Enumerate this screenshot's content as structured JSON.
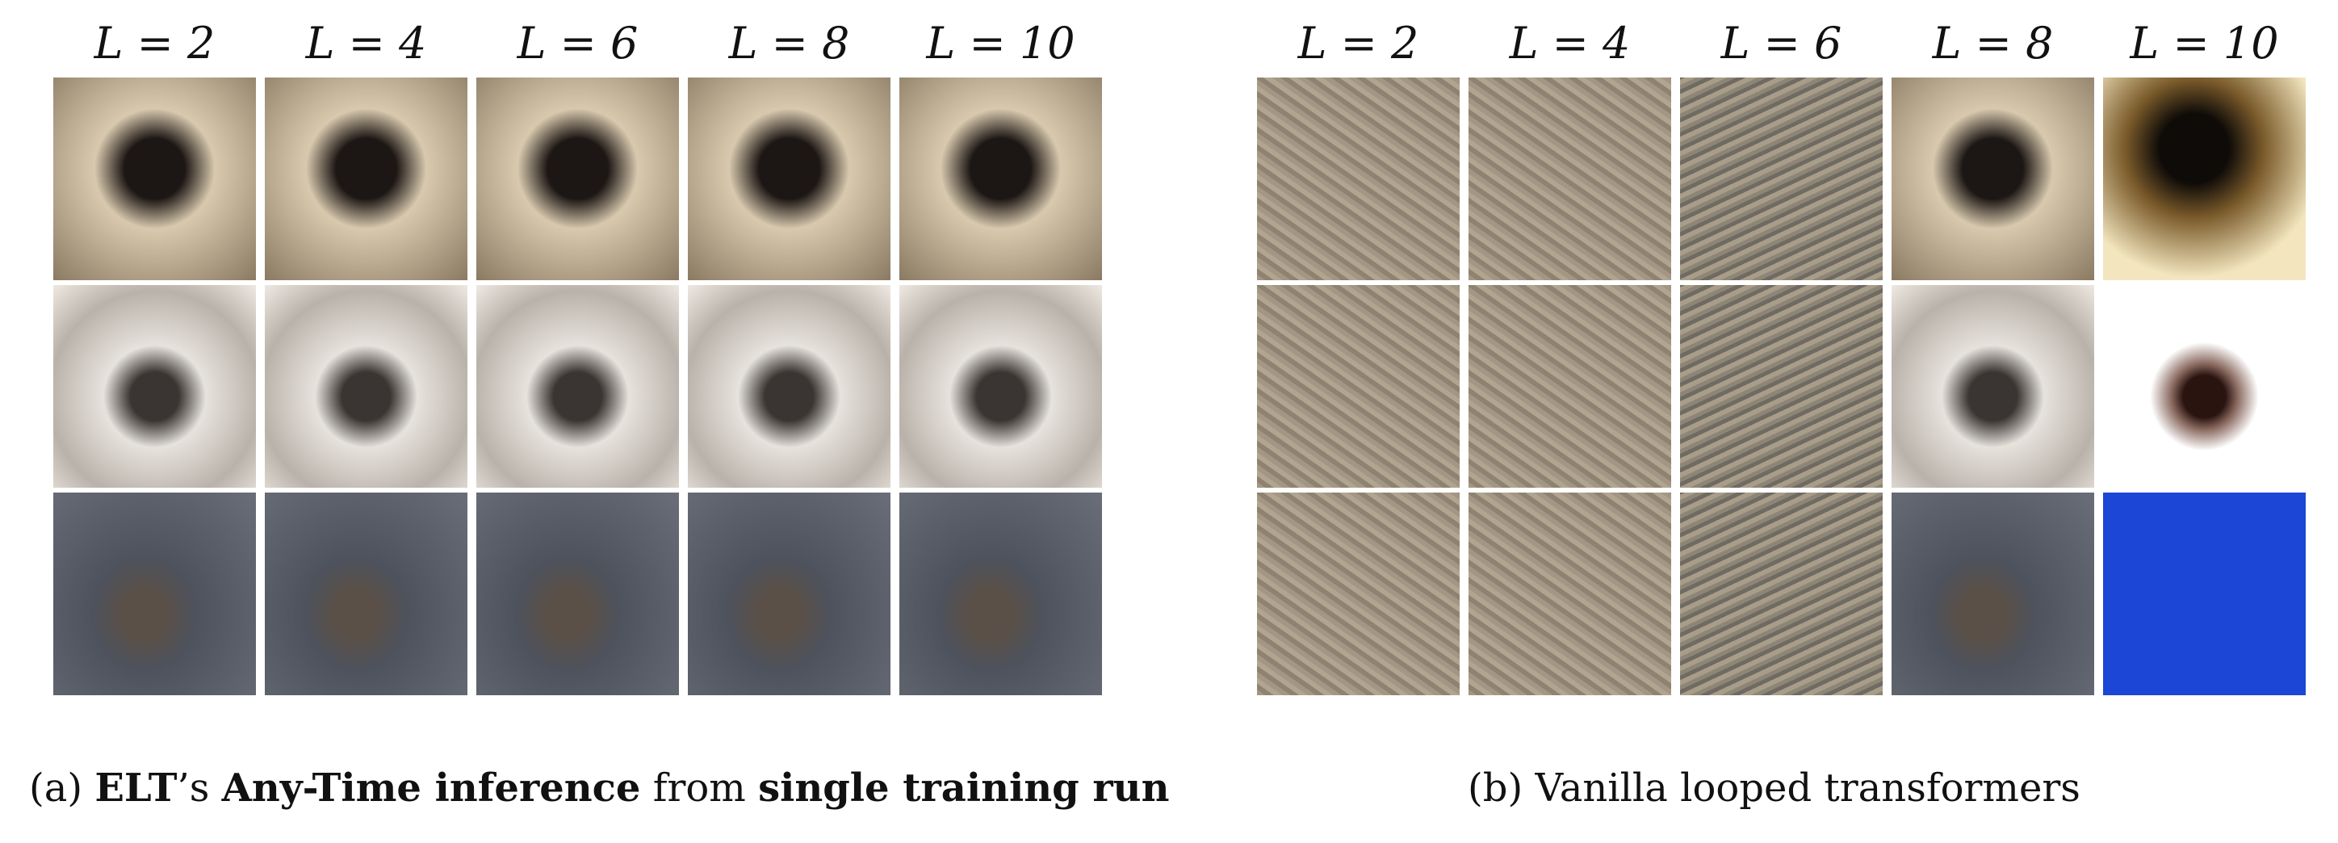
{
  "panels": [
    {
      "headers": [
        "L = 2",
        "L = 4",
        "L = 6",
        "L = 8",
        "L = 10"
      ],
      "caption": [
        "(a) ",
        "ELT",
        "’s ",
        "Any-Time inference",
        " from ",
        "single training run"
      ]
    },
    {
      "headers": [
        "L = 2",
        "L = 4",
        "L = 6",
        "L = 8",
        "L = 10"
      ],
      "caption": [
        "(b) Vanilla looped transformers"
      ]
    }
  ]
}
